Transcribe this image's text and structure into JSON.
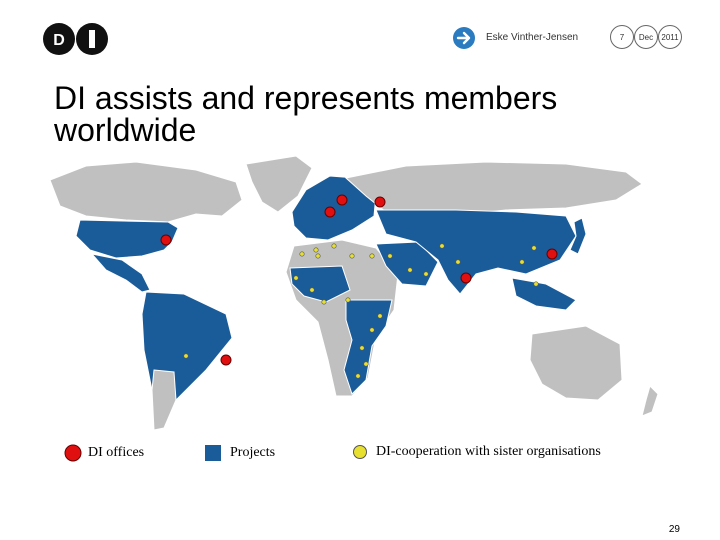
{
  "header": {
    "logo_text": "DI",
    "presenter": "Eske Vinther-Jensen",
    "date_parts": [
      "7",
      "Dec",
      "2011"
    ]
  },
  "slide": {
    "title_line1": "DI assists and represents members",
    "title_line2": "worldwide"
  },
  "legend": {
    "offices_label": "DI offices",
    "projects_label": "Projects",
    "cooperation_label": "DI-cooperation with sister organisations"
  },
  "colors": {
    "ocean": "#ffffff",
    "land": "#c0c0c0",
    "project": "#1a5c9a",
    "office": "#e01010",
    "cooperation": "#e8e030",
    "accent": "#2a7bbf"
  },
  "footer": {
    "page_number": "29"
  }
}
